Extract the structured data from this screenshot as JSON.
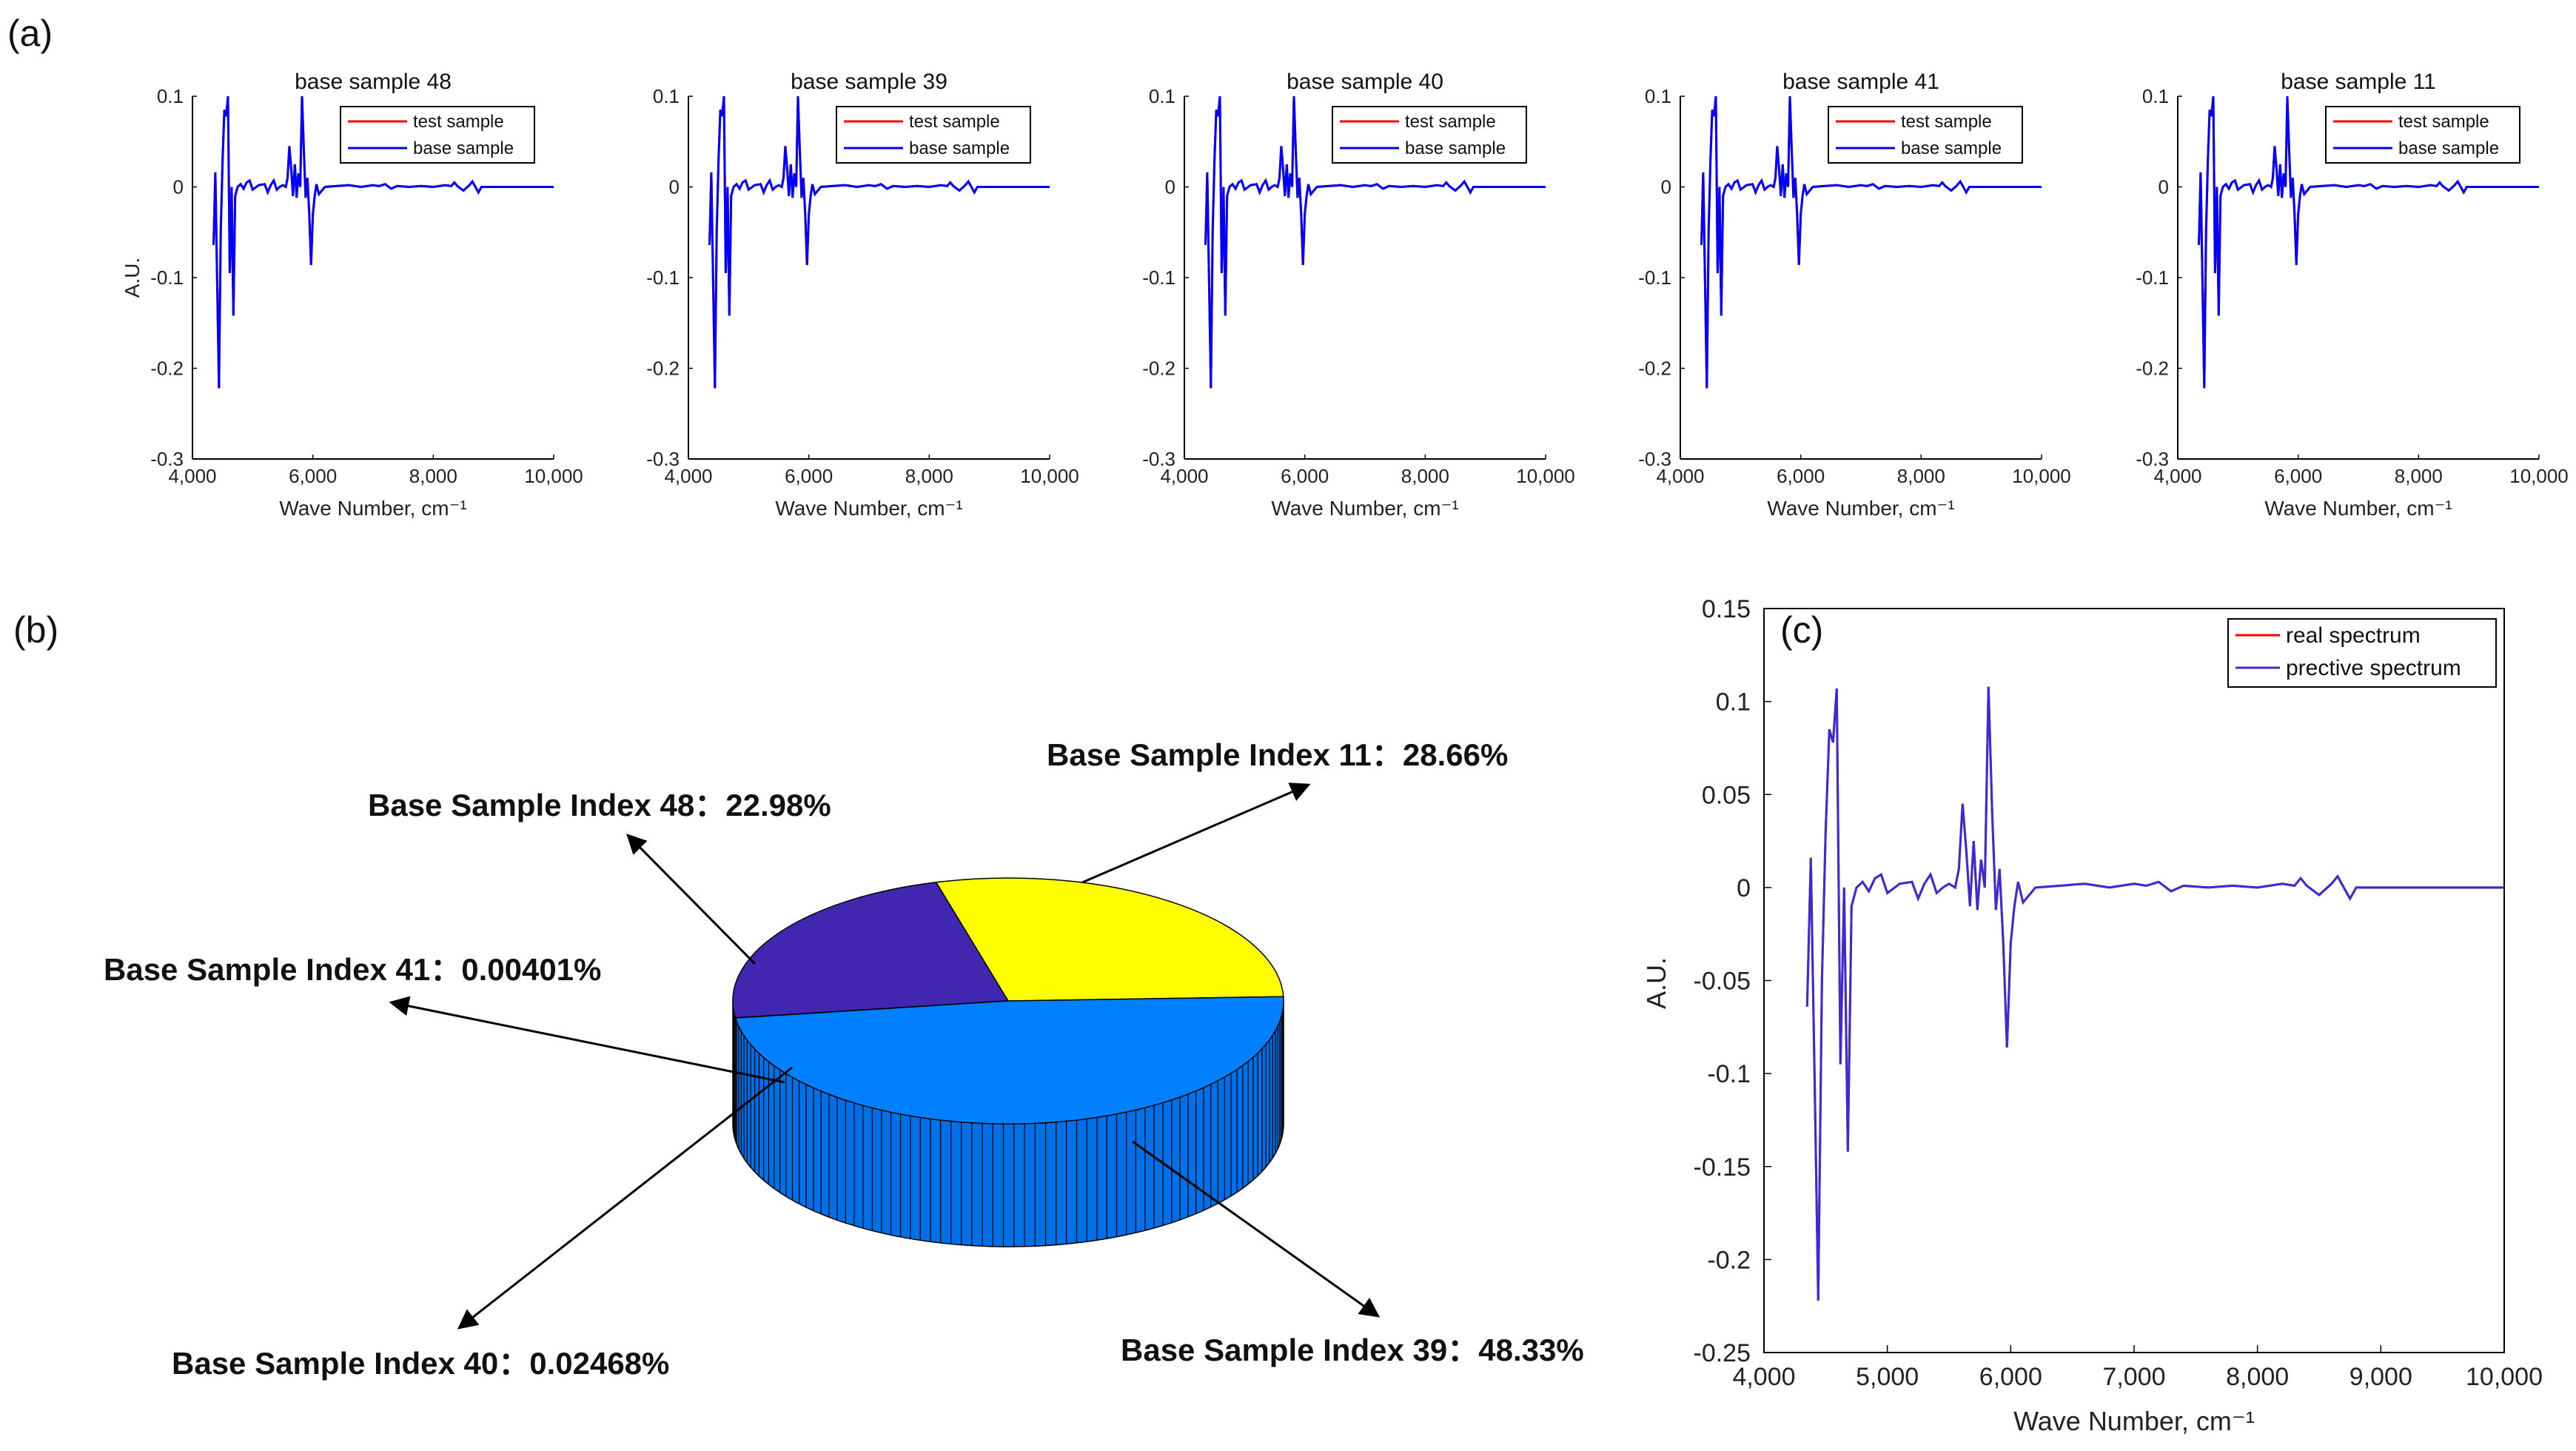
{
  "panels": {
    "a": "(a)",
    "b": "(b)",
    "c": "(c)"
  },
  "colors": {
    "test": "#ff0000",
    "base": "#0000ff",
    "real": "#ff0000",
    "predictive": "#3b2bd6",
    "slice_yellow": "#ffff00",
    "slice_blue": "#0080ff",
    "slice_purple": "#4126b0",
    "slice_side_blue": "#0070e8",
    "slice_side_purple": "#2a177a"
  },
  "spectrum_shape": {
    "x": [
      4350,
      4380,
      4410,
      4440,
      4470,
      4500,
      4530,
      4560,
      4590,
      4620,
      4650,
      4680,
      4710,
      4750,
      4800,
      4850,
      4900,
      4950,
      5000,
      5100,
      5200,
      5250,
      5300,
      5350,
      5400,
      5450,
      5500,
      5550,
      5580,
      5610,
      5640,
      5670,
      5700,
      5730,
      5760,
      5790,
      5820,
      5850,
      5880,
      5910,
      5940,
      5970,
      6000,
      6030,
      6060,
      6100,
      6200,
      6400,
      6600,
      6800,
      7000,
      7100,
      7200,
      7300,
      7400,
      7600,
      7800,
      8000,
      8200,
      8300,
      8350,
      8400,
      8500,
      8600,
      8650,
      8700,
      8750,
      8800,
      8900,
      9000,
      9500,
      10000
    ],
    "y": [
      -0.064,
      0.016,
      -0.1,
      -0.222,
      -0.05,
      0.03,
      0.085,
      0.078,
      0.107,
      -0.095,
      0.0,
      -0.142,
      -0.01,
      0.0,
      0.003,
      -0.002,
      0.005,
      0.007,
      -0.003,
      0.002,
      0.003,
      -0.006,
      0.002,
      0.007,
      -0.003,
      0.0,
      0.002,
      0.0,
      0.01,
      0.045,
      0.02,
      -0.01,
      0.025,
      -0.012,
      0.015,
      0.0,
      0.108,
      0.04,
      -0.012,
      0.01,
      -0.03,
      -0.086,
      -0.03,
      -0.01,
      0.003,
      -0.008,
      0.0,
      0.001,
      0.002,
      0.0,
      0.002,
      0.001,
      0.003,
      -0.002,
      0.001,
      0.0,
      0.001,
      0.0,
      0.002,
      0.001,
      0.005,
      0.001,
      -0.004,
      0.002,
      0.006,
      0.0,
      -0.006,
      0.0,
      0.0,
      0.0,
      0.0,
      0.0
    ]
  },
  "panel_a": {
    "ylabel": "A.U.",
    "xlabel": "Wave Number, cm⁻¹",
    "xticks": [
      "4,000",
      "6,000",
      "8,000",
      "10,000"
    ],
    "xtick_values": [
      4000,
      6000,
      8000,
      10000
    ],
    "yticks": [
      "0.1",
      "0",
      "-0.1",
      "-0.2",
      "-0.3"
    ],
    "ytick_values": [
      0.1,
      0,
      -0.1,
      -0.2,
      -0.3
    ],
    "xlim": [
      4000,
      10000
    ],
    "ylim": [
      -0.3,
      0.1
    ],
    "legend": [
      "test sample",
      "base sample"
    ],
    "subplots": [
      {
        "title": "base sample 48"
      },
      {
        "title": "base sample 39"
      },
      {
        "title": "base sample 40"
      },
      {
        "title": "base sample 41"
      },
      {
        "title": "base sample 11"
      }
    ]
  },
  "chart_data": [
    {
      "type": "line",
      "title": "base sample 48 / 39 / 40 / 41 / 11 (panel a, five subplots)",
      "xlabel": "Wave Number, cm⁻¹",
      "ylabel": "A.U.",
      "xlim": [
        4000,
        10000
      ],
      "ylim": [
        -0.3,
        0.1
      ],
      "series": [
        {
          "name": "test sample",
          "values": "spectrum_shape"
        },
        {
          "name": "base sample",
          "values": "spectrum_shape"
        }
      ]
    },
    {
      "type": "pie",
      "title": "panel b",
      "categories": [
        "Base Sample Index 11",
        "Base Sample Index 39",
        "Base Sample Index 40",
        "Base Sample Index 41",
        "Base Sample Index 48"
      ],
      "values": [
        28.66,
        48.33,
        0.02468,
        0.00401,
        22.98
      ]
    },
    {
      "type": "line",
      "title": "panel c",
      "xlabel": "Wave Number, cm⁻¹",
      "ylabel": "A.U.",
      "xlim": [
        4000,
        10000
      ],
      "ylim": [
        -0.25,
        0.15
      ],
      "series": [
        {
          "name": "real spectrum",
          "values": "spectrum_shape"
        },
        {
          "name": "prective spectrum",
          "values": "spectrum_shape"
        }
      ]
    }
  ],
  "panel_b": {
    "slices": [
      {
        "key": "s11",
        "label": "Base Sample Index 11：28.66%",
        "value": 28.66
      },
      {
        "key": "s39",
        "label": "Base Sample Index 39：48.33%",
        "value": 48.33
      },
      {
        "key": "s40",
        "label": "Base Sample Index 40：0.02468%",
        "value": 0.02468
      },
      {
        "key": "s41",
        "label": "Base Sample Index 41：0.00401%",
        "value": 0.00401
      },
      {
        "key": "s48",
        "label": "Base Sample Index 48：22.98%",
        "value": 22.98
      }
    ]
  },
  "panel_c": {
    "ylabel": "A.U.",
    "xlabel": "Wave Number, cm⁻¹",
    "xticks": [
      "4,000",
      "5,000",
      "6,000",
      "7,000",
      "8,000",
      "9,000",
      "10,000"
    ],
    "xtick_values": [
      4000,
      5000,
      6000,
      7000,
      8000,
      9000,
      10000
    ],
    "yticks": [
      "0.15",
      "0.1",
      "0.05",
      "0",
      "-0.05",
      "-0.1",
      "-0.15",
      "-0.2",
      "-0.25"
    ],
    "ytick_values": [
      0.15,
      0.1,
      0.05,
      0,
      -0.05,
      -0.1,
      -0.15,
      -0.2,
      -0.25
    ],
    "xlim": [
      4000,
      10000
    ],
    "ylim": [
      -0.25,
      0.15
    ],
    "legend": [
      "real spectrum",
      "prective spectrum"
    ]
  }
}
